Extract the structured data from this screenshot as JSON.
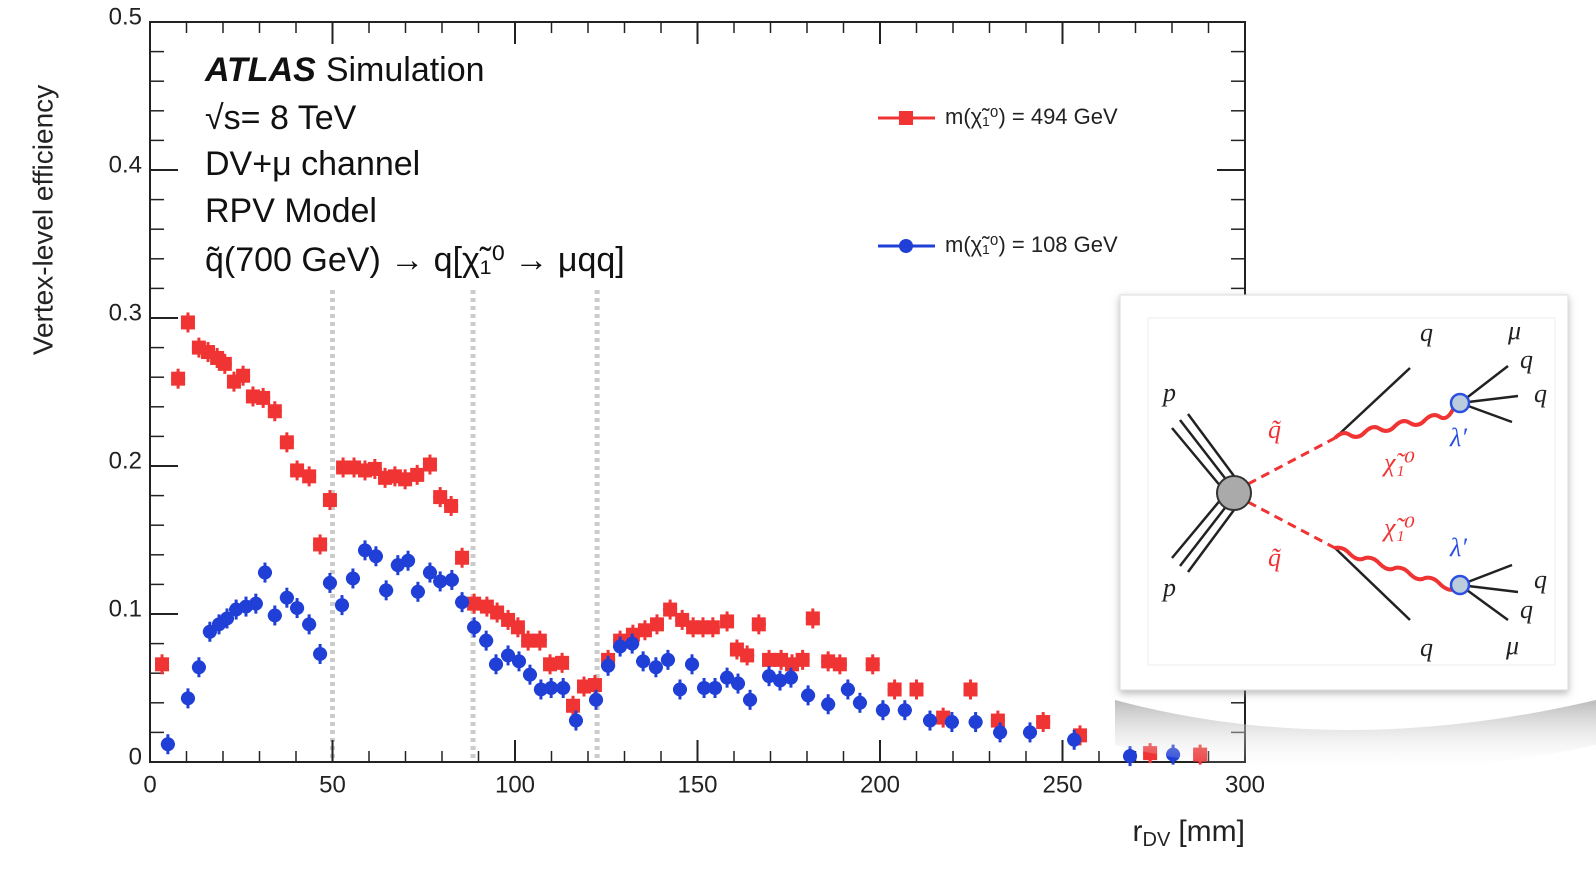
{
  "chart_data": {
    "type": "scatter",
    "xlabel": {
      "symbol": "r",
      "subscript": "DV",
      "unit": "[mm]"
    },
    "ylabel": "Vertex-level efficiency",
    "annotations": {
      "experiment": "ATLAS",
      "status": "Simulation",
      "energy": "√s= 8 TeV",
      "channel": "DV+μ channel",
      "model": "RPV Model",
      "process": "q̃(700 GeV) → q[χ̃₁⁰ → μqq]"
    },
    "xlim": [
      0,
      300
    ],
    "xticks": [
      0,
      50,
      100,
      150,
      200,
      250,
      300
    ],
    "ylim": [
      0,
      0.5
    ],
    "yticks": [
      0,
      0.1,
      0.2,
      0.3,
      0.4,
      0.5
    ],
    "vlines": [
      50,
      88.5,
      122.5
    ],
    "series": [
      {
        "name": "m(χ̃₁⁰) = 494 GeV",
        "color": "#f03434",
        "marker": "square",
        "x": [
          3.3,
          7.7,
          10.4,
          13.4,
          15.9,
          18.4,
          20.5,
          23,
          25.5,
          28.2,
          31,
          34.2,
          37.5,
          40.3,
          43.6,
          46.6,
          49.3,
          52.9,
          55.9,
          58.9,
          61.6,
          64.4,
          67.1,
          69.9,
          73.2,
          76.7,
          79.5,
          82.5,
          85.5,
          88.8,
          92.3,
          95.1,
          98.1,
          100.8,
          103.6,
          106.8,
          109.6,
          112.9,
          115.9,
          118.9,
          121.9,
          125.5,
          128.8,
          132.3,
          135.6,
          138.9,
          142.5,
          145.8,
          148.8,
          151.5,
          154.2,
          158.1,
          160.8,
          163.6,
          166.8,
          169.6,
          172.9,
          175.9,
          178.8,
          181.6,
          185.8,
          189,
          198,
          204,
          210,
          217.3,
          224.8,
          232.3,
          244.7,
          254.8,
          274,
          287.7
        ],
        "values": [
          0.066,
          0.259,
          0.297,
          0.28,
          0.277,
          0.273,
          0.269,
          0.257,
          0.261,
          0.247,
          0.246,
          0.237,
          0.216,
          0.197,
          0.193,
          0.147,
          0.177,
          0.199,
          0.199,
          0.197,
          0.198,
          0.192,
          0.193,
          0.191,
          0.194,
          0.201,
          0.179,
          0.173,
          0.138,
          0.107,
          0.105,
          0.101,
          0.096,
          0.091,
          0.082,
          0.082,
          0.066,
          0.067,
          0.038,
          0.051,
          0.052,
          0.069,
          0.082,
          0.086,
          0.089,
          0.093,
          0.103,
          0.096,
          0.091,
          0.091,
          0.091,
          0.095,
          0.076,
          0.072,
          0.093,
          0.069,
          0.069,
          0.066,
          0.069,
          0.097,
          0.068,
          0.066,
          0.066,
          0.049,
          0.049,
          0.03,
          0.049,
          0.028,
          0.027,
          0.018,
          0.006,
          0.005
        ]
      },
      {
        "name": "m(χ̃₁⁰) = 108 GeV",
        "color": "#1f3fd6",
        "marker": "circle",
        "x": [
          4.9,
          10.4,
          13.4,
          16.4,
          18.9,
          21.1,
          23.6,
          26.3,
          29,
          31.5,
          34.2,
          37.5,
          40.3,
          43.6,
          46.6,
          49.3,
          52.6,
          55.6,
          58.9,
          61.9,
          64.7,
          67.9,
          70.7,
          73.4,
          76.7,
          79.5,
          82.7,
          85.5,
          88.8,
          92.1,
          94.8,
          98.1,
          101.1,
          104.1,
          107.1,
          109.9,
          113.2,
          116.7,
          122.2,
          125.5,
          128.8,
          132.1,
          135.1,
          138.6,
          141.9,
          145.2,
          148.5,
          151.8,
          154.8,
          158.1,
          161.1,
          164.4,
          169.6,
          172.6,
          175.6,
          180.3,
          185.8,
          191.2,
          194.5,
          200.8,
          206.8,
          213.7,
          219.7,
          226.2,
          232.9,
          241.1,
          253.2,
          268.5,
          280.3
        ],
        "values": [
          0.012,
          0.043,
          0.064,
          0.088,
          0.093,
          0.097,
          0.103,
          0.105,
          0.107,
          0.128,
          0.099,
          0.111,
          0.104,
          0.093,
          0.073,
          0.121,
          0.106,
          0.124,
          0.143,
          0.139,
          0.116,
          0.133,
          0.136,
          0.115,
          0.128,
          0.122,
          0.123,
          0.108,
          0.091,
          0.082,
          0.066,
          0.072,
          0.068,
          0.059,
          0.049,
          0.05,
          0.05,
          0.028,
          0.042,
          0.065,
          0.078,
          0.08,
          0.068,
          0.064,
          0.069,
          0.049,
          0.066,
          0.05,
          0.05,
          0.057,
          0.053,
          0.042,
          0.058,
          0.055,
          0.057,
          0.045,
          0.039,
          0.049,
          0.04,
          0.035,
          0.035,
          0.028,
          0.027,
          0.027,
          0.02,
          0.02,
          0.015,
          0.004,
          0.005
        ]
      }
    ]
  },
  "inset": {
    "labels": [
      "p",
      "p",
      "q̃",
      "q̃",
      "χ̃₁⁰",
      "χ̃₁⁰",
      "λ′",
      "λ′",
      "q",
      "μ",
      "q",
      "q",
      "q",
      "q",
      "μ",
      "q"
    ]
  }
}
